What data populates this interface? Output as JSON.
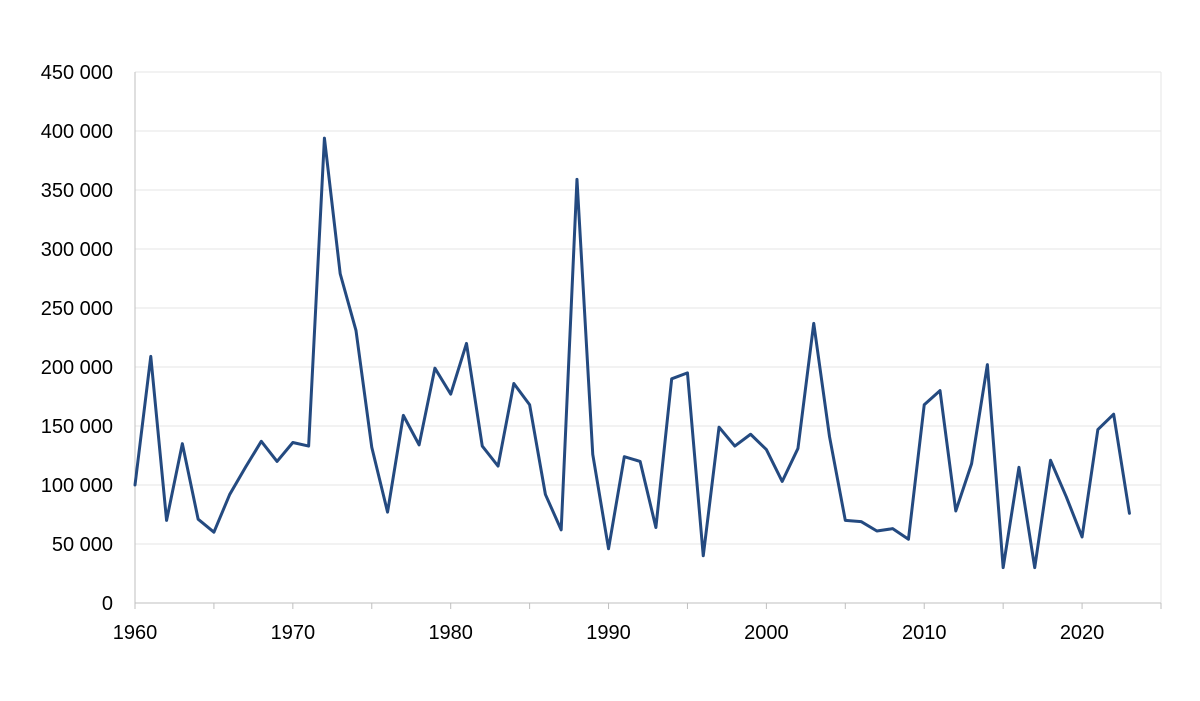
{
  "chart_data": {
    "type": "line",
    "title": "",
    "xlabel": "",
    "ylabel": "",
    "xlim": [
      1960,
      2025
    ],
    "ylim": [
      0,
      450000
    ],
    "y_ticks": [
      0,
      50000,
      100000,
      150000,
      200000,
      250000,
      300000,
      350000,
      400000,
      450000
    ],
    "y_tick_labels": [
      "0",
      "50 000",
      "100 000",
      "150 000",
      "200 000",
      "250 000",
      "300 000",
      "350 000",
      "400 000",
      "450 000"
    ],
    "x_ticks": [
      1960,
      1970,
      1980,
      1990,
      2000,
      2010,
      2020
    ],
    "x_tick_labels": [
      "1960",
      "1970",
      "1980",
      "1990",
      "2000",
      "2010",
      "2020"
    ],
    "grid": true,
    "legend": "none",
    "series": [
      {
        "color": "#244a80",
        "x": [
          1960,
          1961,
          1962,
          1963,
          1964,
          1965,
          1966,
          1967,
          1968,
          1969,
          1970,
          1971,
          1972,
          1973,
          1974,
          1975,
          1976,
          1977,
          1978,
          1979,
          1980,
          1981,
          1982,
          1983,
          1984,
          1985,
          1986,
          1987,
          1988,
          1989,
          1990,
          1991,
          1992,
          1993,
          1994,
          1995,
          1996,
          1997,
          1998,
          1999,
          2000,
          2001,
          2002,
          2003,
          2004,
          2005,
          2006,
          2007,
          2008,
          2009,
          2010,
          2011,
          2012,
          2013,
          2014,
          2015,
          2016,
          2017,
          2018,
          2019,
          2020,
          2021,
          2022,
          2023
        ],
        "values": [
          100000,
          209000,
          70000,
          135000,
          71000,
          60000,
          92000,
          115000,
          137000,
          120000,
          136000,
          133000,
          394000,
          279000,
          231000,
          132000,
          77000,
          159000,
          134000,
          199000,
          177000,
          220000,
          133000,
          116000,
          186000,
          168000,
          92000,
          62000,
          359000,
          126000,
          46000,
          124000,
          120000,
          64000,
          190000,
          195000,
          40000,
          149000,
          133000,
          143000,
          130000,
          103000,
          131000,
          237000,
          141000,
          70000,
          69000,
          61000,
          63000,
          54000,
          168000,
          180000,
          78000,
          118000,
          202000,
          30000,
          115000,
          30000,
          121000,
          90000,
          56000,
          147000,
          160000,
          76000
        ]
      }
    ]
  }
}
